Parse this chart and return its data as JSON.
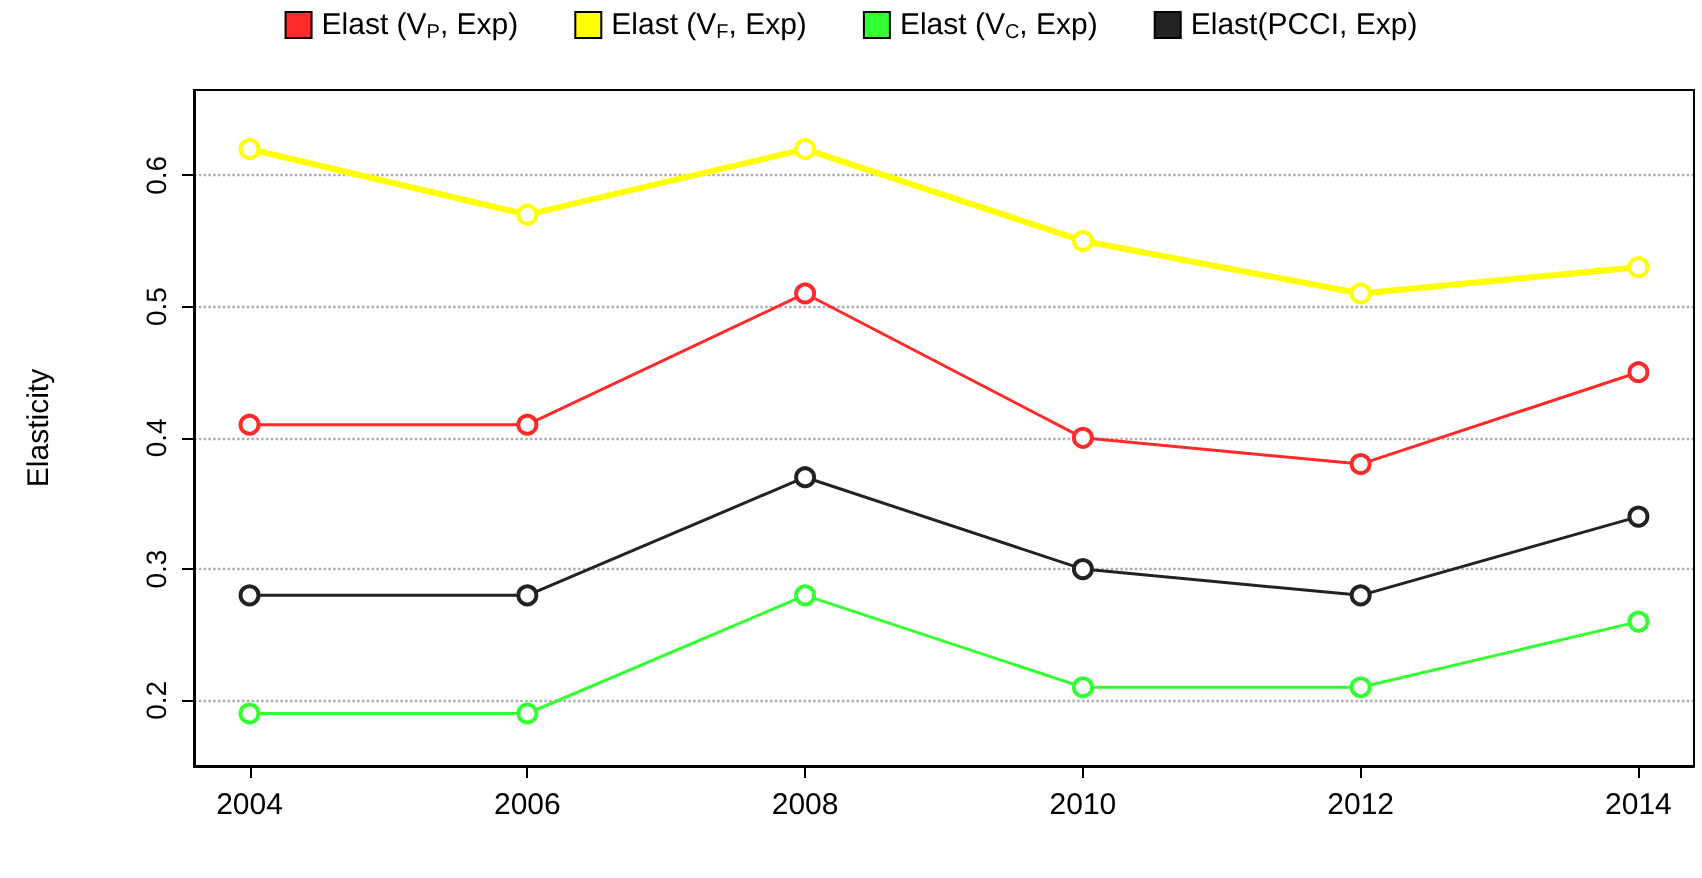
{
  "chart_data": {
    "type": "line",
    "ylabel": "Elasticity",
    "x": [
      2004,
      2006,
      2008,
      2010,
      2012,
      2014
    ],
    "series": [
      {
        "name": "Elast (V$_{P}$, Exp)",
        "color": "#ff2a2a",
        "values": [
          0.41,
          0.41,
          0.51,
          0.4,
          0.38,
          0.45
        ]
      },
      {
        "name": "Elast (V$_{F}$, Exp)",
        "color": "#ffff00",
        "values": [
          0.62,
          0.57,
          0.62,
          0.55,
          0.51,
          0.53
        ]
      },
      {
        "name": "Elast (V$_{C}$, Exp)",
        "color": "#33ff33",
        "values": [
          0.19,
          0.19,
          0.28,
          0.21,
          0.21,
          0.26
        ]
      },
      {
        "name": "Elast(PCCI, Exp)",
        "color": "#222222",
        "values": [
          0.28,
          0.28,
          0.37,
          0.3,
          0.28,
          0.34
        ]
      }
    ],
    "xlim": [
      2003.6,
      2014.4
    ],
    "xticks": [
      2004,
      2006,
      2008,
      2010,
      2012,
      2014
    ],
    "ylim": [
      0.15,
      0.665
    ],
    "yticks": [
      0.2,
      0.3,
      0.4,
      0.5,
      0.6
    ],
    "grid": "y",
    "legend": "top",
    "marker": "circle",
    "line_style": "solid"
  }
}
